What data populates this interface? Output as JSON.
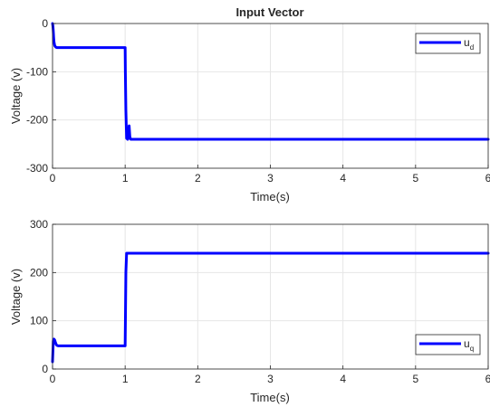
{
  "chart_data": [
    {
      "type": "line",
      "title": "Input Vector",
      "xlabel": "Time(s)",
      "ylabel": "Voltage (v)",
      "xlim": [
        0,
        6
      ],
      "ylim": [
        -300,
        0
      ],
      "xticks": [
        "0",
        "1",
        "2",
        "3",
        "4",
        "5",
        "6"
      ],
      "yticks": [
        "-300",
        "-200",
        "-100",
        "0"
      ],
      "grid": true,
      "legend_position": "top-right",
      "series": [
        {
          "name": "ud",
          "legend_main": "u",
          "legend_sub": "d",
          "color": "#0000ff",
          "x": [
            0,
            0.005,
            0.01,
            0.015,
            0.02,
            0.03,
            0.045,
            0.06,
            0.08,
            0.1,
            0.2,
            0.5,
            1.0,
            1.003,
            1.01,
            1.02,
            1.035,
            1.045,
            1.055,
            1.065,
            1.075,
            1.09,
            1.2,
            2,
            3,
            4,
            5,
            6
          ],
          "y": [
            0,
            -5,
            -15,
            -28,
            -38,
            -46,
            -49,
            -50,
            -50,
            -50,
            -50,
            -50,
            -50,
            -100,
            -180,
            -238,
            -240,
            -228,
            -212,
            -235,
            -240,
            -240,
            -240,
            -240,
            -240,
            -240,
            -240,
            -240
          ]
        }
      ]
    },
    {
      "type": "line",
      "title": "",
      "xlabel": "Time(s)",
      "ylabel": "Voltage (v)",
      "xlim": [
        0,
        6
      ],
      "ylim": [
        0,
        300
      ],
      "xticks": [
        "0",
        "1",
        "2",
        "3",
        "4",
        "5",
        "6"
      ],
      "yticks": [
        "0",
        "100",
        "200",
        "300"
      ],
      "grid": true,
      "legend_position": "bottom-right",
      "series": [
        {
          "name": "uq",
          "legend_main": "u",
          "legend_sub": "q",
          "color": "#0000ff",
          "x": [
            0,
            0.005,
            0.01,
            0.02,
            0.03,
            0.04,
            0.05,
            0.06,
            0.08,
            0.1,
            0.2,
            0.5,
            1.0,
            1.005,
            1.01,
            1.02,
            1.05,
            2,
            3,
            4,
            5,
            6
          ],
          "y": [
            15,
            35,
            58,
            62,
            60,
            55,
            51,
            49,
            48,
            48,
            48,
            48,
            48,
            120,
            200,
            240,
            240,
            240,
            240,
            240,
            240,
            240
          ]
        }
      ]
    }
  ]
}
